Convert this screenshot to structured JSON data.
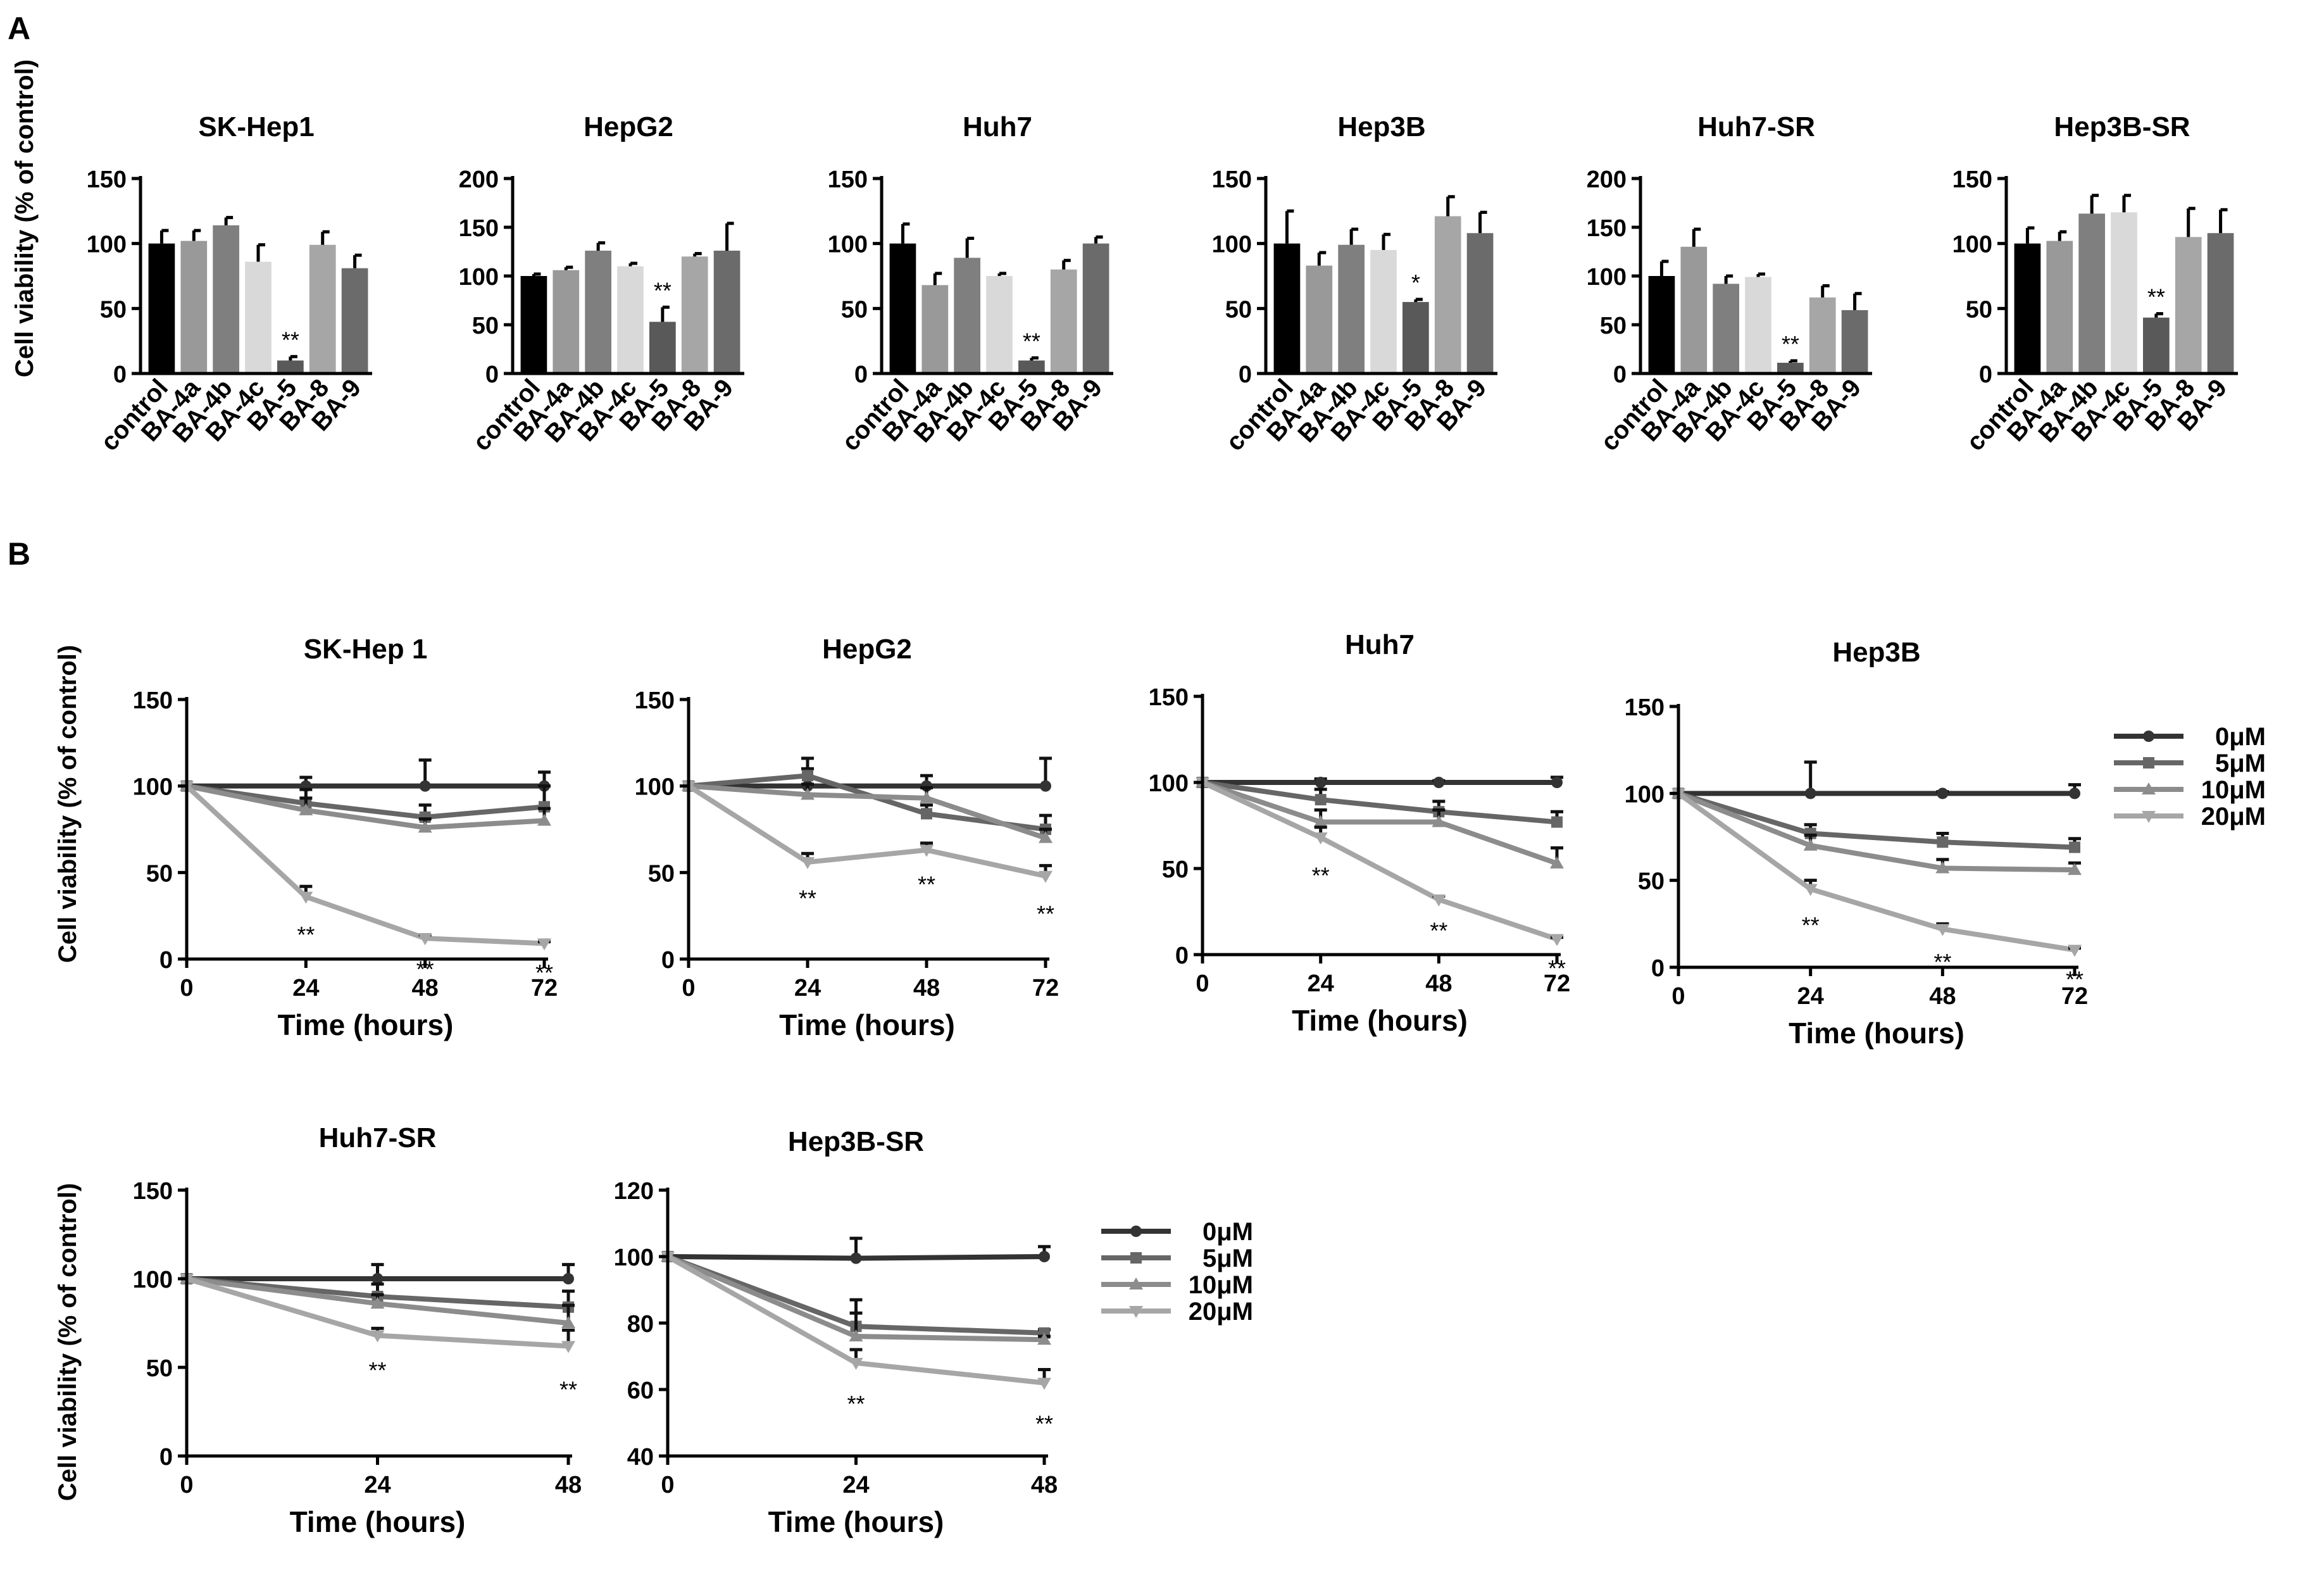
{
  "panels": {
    "A": {
      "label": "A",
      "ylabel": "Cell viability (% of control)"
    },
    "B": {
      "label": "B",
      "ylabel": "Cell viability (% of control)",
      "xlabel": "Time (hours)"
    }
  },
  "colors": {
    "bars": [
      "#000000",
      "#999999",
      "#7f7f7f",
      "#d9d9d9",
      "#595959",
      "#a6a6a6",
      "#6b6b6b"
    ],
    "series": [
      "#333333",
      "#666666",
      "#8c8c8c",
      "#a6a6a6"
    ]
  },
  "legend_entries": [
    "0μM",
    "5μM",
    "10μM",
    "20μM"
  ],
  "chart_data": [
    {
      "type": "bar",
      "title": "SK-Hep1",
      "categories": [
        "control",
        "BA-4a",
        "BA-4b",
        "BA-4c",
        "BA-5",
        "BA-8",
        "BA-9"
      ],
      "values": [
        100,
        102,
        114,
        86,
        10,
        99,
        81
      ],
      "errors": [
        10,
        8,
        6,
        13,
        3,
        10,
        10
      ],
      "annotations": [
        null,
        null,
        null,
        null,
        "**",
        null,
        null
      ],
      "ylim": [
        0,
        150
      ],
      "yticks": [
        0,
        50,
        100,
        150
      ]
    },
    {
      "type": "bar",
      "title": "HepG2",
      "categories": [
        "control",
        "BA-4a",
        "BA-4b",
        "BA-4c",
        "BA-5",
        "BA-8",
        "BA-9"
      ],
      "values": [
        100,
        106,
        126,
        110,
        53,
        120,
        126
      ],
      "errors": [
        2,
        3,
        8,
        3,
        15,
        3,
        28
      ],
      "annotations": [
        null,
        null,
        null,
        null,
        "**",
        null,
        null
      ],
      "ylim": [
        0,
        200
      ],
      "yticks": [
        0,
        50,
        100,
        150,
        200
      ]
    },
    {
      "type": "bar",
      "title": "Huh7",
      "categories": [
        "control",
        "BA-4a",
        "BA-4b",
        "BA-4c",
        "BA-5",
        "BA-8",
        "BA-9"
      ],
      "values": [
        100,
        68,
        89,
        75,
        10,
        80,
        100
      ],
      "errors": [
        15,
        9,
        15,
        2,
        2,
        7,
        5
      ],
      "annotations": [
        null,
        null,
        null,
        null,
        "**",
        null,
        null
      ],
      "ylim": [
        0,
        150
      ],
      "yticks": [
        0,
        50,
        100,
        150
      ]
    },
    {
      "type": "bar",
      "title": "Hep3B",
      "categories": [
        "control",
        "BA-4a",
        "BA-4b",
        "BA-4c",
        "BA-5",
        "BA-8",
        "BA-9"
      ],
      "values": [
        100,
        83,
        99,
        95,
        55,
        121,
        108
      ],
      "errors": [
        25,
        10,
        12,
        12,
        2,
        15,
        16
      ],
      "annotations": [
        null,
        null,
        null,
        null,
        "*",
        null,
        null
      ],
      "ylim": [
        0,
        150
      ],
      "yticks": [
        0,
        50,
        100,
        150
      ]
    },
    {
      "type": "bar",
      "title": "Huh7-SR",
      "categories": [
        "control",
        "BA-4a",
        "BA-4b",
        "BA-4c",
        "BA-5",
        "BA-8",
        "BA-9"
      ],
      "values": [
        100,
        130,
        92,
        99,
        11,
        78,
        65
      ],
      "errors": [
        15,
        18,
        8,
        3,
        2,
        12,
        17
      ],
      "annotations": [
        null,
        null,
        null,
        null,
        "**",
        null,
        null
      ],
      "ylim": [
        0,
        200
      ],
      "yticks": [
        0,
        50,
        100,
        150,
        200
      ]
    },
    {
      "type": "bar",
      "title": "Hep3B-SR",
      "categories": [
        "control",
        "BA-4a",
        "BA-4b",
        "BA-4c",
        "BA-5",
        "BA-8",
        "BA-9"
      ],
      "values": [
        100,
        102,
        123,
        124,
        43,
        105,
        108
      ],
      "errors": [
        12,
        7,
        14,
        13,
        3,
        22,
        18
      ],
      "annotations": [
        null,
        null,
        null,
        null,
        "**",
        null,
        null
      ],
      "ylim": [
        0,
        150
      ],
      "yticks": [
        0,
        50,
        100,
        150
      ]
    },
    {
      "type": "line",
      "title": "SK-Hep 1",
      "x": [
        0,
        24,
        48,
        72
      ],
      "ylim": [
        0,
        150
      ],
      "yticks": [
        0,
        50,
        100,
        150
      ],
      "xticks": [
        0,
        24,
        48,
        72
      ],
      "xlabel": "Time (hours)",
      "series": [
        {
          "name": "0μM",
          "values": [
            100,
            100,
            100,
            100
          ],
          "errors": [
            0,
            5,
            15,
            8
          ]
        },
        {
          "name": "5μM",
          "values": [
            100,
            90,
            82,
            88
          ],
          "errors": [
            0,
            8,
            7,
            12
          ]
        },
        {
          "name": "10μM",
          "values": [
            100,
            86,
            76,
            80
          ],
          "errors": [
            0,
            7,
            5,
            7
          ]
        },
        {
          "name": "20μM",
          "values": [
            100,
            36,
            12,
            9
          ],
          "errors": [
            0,
            6,
            2,
            1
          ]
        }
      ],
      "annotations": [
        null,
        "**",
        "**",
        "**"
      ]
    },
    {
      "type": "line",
      "title": "HepG2",
      "x": [
        0,
        24,
        48,
        72
      ],
      "ylim": [
        0,
        150
      ],
      "yticks": [
        0,
        50,
        100,
        150
      ],
      "xticks": [
        0,
        24,
        48,
        72
      ],
      "xlabel": "Time (hours)",
      "series": [
        {
          "name": "0μM",
          "values": [
            100,
            100,
            100,
            100
          ],
          "errors": [
            0,
            10,
            6,
            16
          ]
        },
        {
          "name": "5μM",
          "values": [
            100,
            106,
            84,
            75
          ],
          "errors": [
            0,
            10,
            5,
            8
          ]
        },
        {
          "name": "10μM",
          "values": [
            100,
            95,
            93,
            70
          ],
          "errors": [
            0,
            6,
            6,
            5
          ]
        },
        {
          "name": "20μM",
          "values": [
            100,
            56,
            63,
            48
          ],
          "errors": [
            0,
            5,
            4,
            6
          ]
        }
      ],
      "annotations": [
        null,
        "**",
        "**",
        "**"
      ]
    },
    {
      "type": "line",
      "title": "Huh7",
      "x": [
        0,
        24,
        48,
        72
      ],
      "ylim": [
        0,
        150
      ],
      "yticks": [
        0,
        50,
        100,
        150
      ],
      "xticks": [
        0,
        24,
        48,
        72
      ],
      "xlabel": "Time (hours)",
      "series": [
        {
          "name": "0μM",
          "values": [
            100,
            100,
            100,
            100
          ],
          "errors": [
            0,
            2,
            1,
            3
          ]
        },
        {
          "name": "5μM",
          "values": [
            100,
            90,
            83,
            77
          ],
          "errors": [
            0,
            6,
            6,
            6
          ]
        },
        {
          "name": "10μM",
          "values": [
            100,
            77,
            77,
            53
          ],
          "errors": [
            0,
            7,
            7,
            9
          ]
        },
        {
          "name": "20μM",
          "values": [
            100,
            68,
            32,
            9
          ],
          "errors": [
            0,
            6,
            2,
            1
          ]
        }
      ],
      "annotations": [
        null,
        "**",
        "**",
        "**"
      ]
    },
    {
      "type": "line",
      "title": "Hep3B",
      "x": [
        0,
        24,
        48,
        72
      ],
      "ylim": [
        0,
        150
      ],
      "yticks": [
        0,
        50,
        100,
        150
      ],
      "xticks": [
        0,
        24,
        48,
        72
      ],
      "xlabel": "Time (hours)",
      "series": [
        {
          "name": "0μM",
          "values": [
            100,
            100,
            100,
            100
          ],
          "errors": [
            0,
            18,
            1,
            5
          ]
        },
        {
          "name": "5μM",
          "values": [
            100,
            77,
            72,
            69
          ],
          "errors": [
            0,
            5,
            5,
            5
          ]
        },
        {
          "name": "10μM",
          "values": [
            100,
            70,
            57,
            56
          ],
          "errors": [
            0,
            6,
            5,
            4
          ]
        },
        {
          "name": "20μM",
          "values": [
            100,
            45,
            22,
            10
          ],
          "errors": [
            0,
            5,
            3,
            1
          ]
        }
      ],
      "annotations": [
        null,
        "**",
        "**",
        "**"
      ]
    },
    {
      "type": "line",
      "title": "Huh7-SR",
      "x": [
        0,
        24,
        48
      ],
      "ylim": [
        0,
        150
      ],
      "yticks": [
        0,
        50,
        100,
        150
      ],
      "xticks": [
        0,
        24,
        48
      ],
      "xlabel": "Time (hours)",
      "series": [
        {
          "name": "0μM",
          "values": [
            100,
            100,
            100
          ],
          "errors": [
            0,
            8,
            8
          ]
        },
        {
          "name": "5μM",
          "values": [
            100,
            90,
            84
          ],
          "errors": [
            0,
            7,
            9
          ]
        },
        {
          "name": "10μM",
          "values": [
            100,
            86,
            75
          ],
          "errors": [
            0,
            5,
            10
          ]
        },
        {
          "name": "20μM",
          "values": [
            100,
            68,
            62
          ],
          "errors": [
            0,
            4,
            9
          ]
        }
      ],
      "annotations": [
        null,
        "**",
        "**"
      ]
    },
    {
      "type": "line",
      "title": "Hep3B-SR",
      "x": [
        0,
        24,
        48
      ],
      "ylim": [
        40,
        120
      ],
      "yticks": [
        40,
        60,
        80,
        100,
        120
      ],
      "xticks": [
        0,
        24,
        48
      ],
      "xlabel": "Time (hours)",
      "series": [
        {
          "name": "0μM",
          "values": [
            100,
            99.5,
            100
          ],
          "errors": [
            0,
            6,
            3
          ]
        },
        {
          "name": "5μM",
          "values": [
            100,
            79,
            77
          ],
          "errors": [
            0,
            8,
            1
          ]
        },
        {
          "name": "10μM",
          "values": [
            100,
            76,
            75
          ],
          "errors": [
            0,
            7,
            1
          ]
        },
        {
          "name": "20μM",
          "values": [
            100,
            68,
            62
          ],
          "errors": [
            0,
            4,
            4
          ]
        }
      ],
      "annotations": [
        null,
        "**",
        "**"
      ]
    }
  ]
}
